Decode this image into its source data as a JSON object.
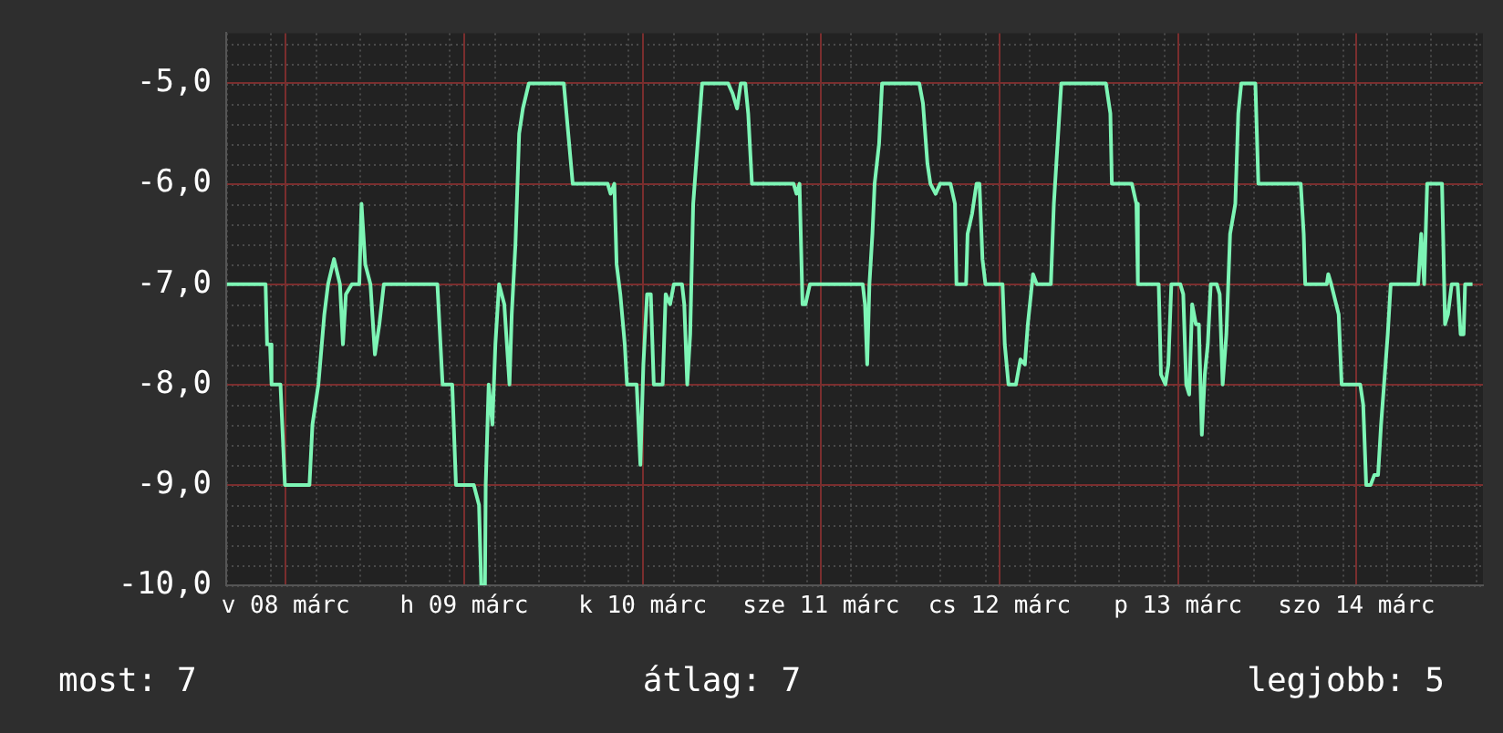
{
  "chart_data": {
    "type": "line",
    "annotations": [
      "most: 7",
      "átlag: 7",
      "legjobb: 5"
    ],
    "xlim": [
      "--03-07T16:00",
      "--03-14T17:00"
    ],
    "xticks": [
      {
        "value": "--03-08",
        "label": "v 08 márc"
      },
      {
        "value": "--03-09",
        "label": "h 09 márc"
      },
      {
        "value": "--03-10",
        "label": "k 10 márc"
      },
      {
        "value": "--03-11",
        "label": "sze 11 márc"
      },
      {
        "value": "--03-12",
        "label": "cs 12 márc"
      },
      {
        "value": "--03-13",
        "label": "p 13 márc"
      },
      {
        "value": "--03-14",
        "label": "szo 14 márc"
      }
    ],
    "ylim": [
      -10,
      -4.5
    ],
    "yticks": [
      {
        "value": -10,
        "label": "-10,0"
      },
      {
        "value": -9,
        "label": "-9,0"
      },
      {
        "value": -8,
        "label": "-8,0"
      },
      {
        "value": -7,
        "label": "-7,0"
      },
      {
        "value": -6,
        "label": "-6,0"
      },
      {
        "value": -5,
        "label": "-5,0"
      }
    ],
    "grid": true,
    "legend": false,
    "marker": "none",
    "line_style": "solid",
    "series": [
      {
        "color": "#7df5b5",
        "x": [
          "--03-07T16:06",
          "--03-07T21:18",
          "--03-07T21:30",
          "--03-07T21:54",
          "--03-07T22:06",
          "--03-07T23:18",
          "--03-07T23:54",
          "--03-08T03:12",
          "--03-08T03:36",
          "--03-08T04:24",
          "--03-08T05:12",
          "--03-08T05:42",
          "--03-08T06:30",
          "--03-08T07:18",
          "--03-08T07:42",
          "--03-08T08:06",
          "--03-08T08:54",
          "--03-08T09:54",
          "--03-08T10:12",
          "--03-08T10:42",
          "--03-08T11:24",
          "--03-08T12:00",
          "--03-08T12:36",
          "--03-08T13:12",
          "--03-08T20:24",
          "--03-08T21:06",
          "--03-08T22:24",
          "--03-08T22:54",
          "--03-09T01:18",
          "--03-09T02:00",
          "--03-09T02:18",
          "--03-09T02:48",
          "--03-09T02:54",
          "--03-09T03:18",
          "--03-09T03:48",
          "--03-09T04:12",
          "--03-09T04:42",
          "--03-09T05:24",
          "--03-09T06:06",
          "--03-09T06:24",
          "--03-09T06:54",
          "--03-09T07:24",
          "--03-09T07:54",
          "--03-09T08:42",
          "--03-09T13:24",
          "--03-09T14:00",
          "--03-09T14:36",
          "--03-09T19:18",
          "--03-09T19:42",
          "--03-09T20:12",
          "--03-09T20:30",
          "--03-09T21:00",
          "--03-09T21:36",
          "--03-09T21:54",
          "--03-09T23:12",
          "--03-09T23:42",
          "--03-10T00:06",
          "--03-10T00:36",
          "--03-10T01:06",
          "--03-10T01:30",
          "--03-10T02:42",
          "--03-10T03:06",
          "--03-10T03:42",
          "--03-10T04:12",
          "--03-10T05:18",
          "--03-10T05:36",
          "--03-10T06:00",
          "--03-10T06:24",
          "--03-10T06:48",
          "--03-10T07:24",
          "--03-10T08:00",
          "--03-10T11:30",
          "--03-10T12:06",
          "--03-10T12:42",
          "--03-10T13:12",
          "--03-10T13:48",
          "--03-10T14:12",
          "--03-10T14:42",
          "--03-10T20:18",
          "--03-10T20:42",
          "--03-10T21:06",
          "--03-10T21:30",
          "--03-10T21:54",
          "--03-10T22:30",
          "--03-11T05:36",
          "--03-11T05:54",
          "--03-11T06:12",
          "--03-11T06:30",
          "--03-11T06:54",
          "--03-11T07:12",
          "--03-11T07:48",
          "--03-11T08:12",
          "--03-11T13:12",
          "--03-11T13:42",
          "--03-11T14:18",
          "--03-11T14:42",
          "--03-11T15:24",
          "--03-11T16:00",
          "--03-11T17:24",
          "--03-11T18:00",
          "--03-11T18:12",
          "--03-11T19:30",
          "--03-11T19:42",
          "--03-11T20:18",
          "--03-11T20:54",
          "--03-11T21:18",
          "--03-11T21:42",
          "--03-11T22:06",
          "--03-12T00:24",
          "--03-12T00:42",
          "--03-12T01:12",
          "--03-12T02:12",
          "--03-12T02:48",
          "--03-12T03:24",
          "--03-12T03:48",
          "--03-12T04:30",
          "--03-12T05:00",
          "--03-12T06:54",
          "--03-12T07:18",
          "--03-12T07:48",
          "--03-12T08:18",
          "--03-12T14:18",
          "--03-12T14:54",
          "--03-12T15:06",
          "--03-12T17:48",
          "--03-12T18:24",
          "--03-12T18:36",
          "--03-12T21:24",
          "--03-12T21:42",
          "--03-12T22:18",
          "--03-12T22:42",
          "--03-12T23:06",
          "--03-13T00:18",
          "--03-13T00:42",
          "--03-13T01:06",
          "--03-13T01:30",
          "--03-13T01:54",
          "--03-13T02:24",
          "--03-13T02:48",
          "--03-13T03:12",
          "--03-13T03:36",
          "--03-13T04:00",
          "--03-13T04:24",
          "--03-13T05:12",
          "--03-13T05:36",
          "--03-13T06:00",
          "--03-13T06:30",
          "--03-13T07:00",
          "--03-13T07:42",
          "--03-13T08:06",
          "--03-13T08:30",
          "--03-13T10:24",
          "--03-13T10:48",
          "--03-13T16:30",
          "--03-13T16:54",
          "--03-13T17:06",
          "--03-13T20:00",
          "--03-13T20:12",
          "--03-13T20:36",
          "--03-13T21:36",
          "--03-13T22:00",
          "--03-14T00:30",
          "--03-14T00:54",
          "--03-14T01:18",
          "--03-14T01:54",
          "--03-14T02:24",
          "--03-14T02:54",
          "--03-14T03:18",
          "--03-14T03:42",
          "--03-14T04:12",
          "--03-14T04:36",
          "--03-14T08:18",
          "--03-14T08:42",
          "--03-14T09:06",
          "--03-14T09:30",
          "--03-14T11:30",
          "--03-14T11:54",
          "--03-14T12:18",
          "--03-14T12:48",
          "--03-14T13:36",
          "--03-14T14:00",
          "--03-14T14:24",
          "--03-14T14:36",
          "--03-14T15:36"
        ],
        "values": [
          -7,
          -7,
          -7.6,
          -7.6,
          -8,
          -8,
          -9,
          -9,
          -8.4,
          -8,
          -7.3,
          -7,
          -6.75,
          -7,
          -7.6,
          -7.1,
          -7,
          -7,
          -6.2,
          -6.8,
          -7,
          -7.7,
          -7.4,
          -7,
          -7,
          -8,
          -8,
          -9,
          -9,
          -9.2,
          -10,
          -10,
          -9,
          -8,
          -8.4,
          -7.6,
          -7,
          -7.2,
          -8,
          -7.3,
          -6.6,
          -5.5,
          -5.25,
          -5,
          -5,
          -5.5,
          -6,
          -6,
          -6.1,
          -6,
          -6.8,
          -7.1,
          -7.6,
          -8,
          -8,
          -8.8,
          -7.8,
          -7.1,
          -7.1,
          -8,
          -8,
          -7.1,
          -7.2,
          -7,
          -7,
          -7.2,
          -8,
          -7.5,
          -6.2,
          -5.6,
          -5,
          -5,
          -5.1,
          -5.25,
          -5,
          -5,
          -5.3,
          -6,
          -6,
          -6.1,
          -6,
          -7.2,
          -7.2,
          -7,
          -7,
          -7.2,
          -7.8,
          -7,
          -6.5,
          -6,
          -5.6,
          -5,
          -5,
          -5.2,
          -5.8,
          -6,
          -6.1,
          -6,
          -6,
          -6.2,
          -7,
          -7,
          -6.5,
          -6.3,
          -6,
          -6,
          -6.75,
          -7,
          -7,
          -7.6,
          -8,
          -8,
          -7.75,
          -7.8,
          -7.4,
          -6.9,
          -7,
          -7,
          -6.2,
          -5.6,
          -5,
          -5,
          -5.3,
          -6,
          -6,
          -6.2,
          -7,
          -7,
          -7.9,
          -8,
          -7.8,
          -7,
          -7,
          -7.1,
          -8,
          -8.1,
          -7.2,
          -7.4,
          -7.4,
          -8.5,
          -7.9,
          -7.6,
          -7,
          -7,
          -7.1,
          -8,
          -7.5,
          -6.5,
          -6.2,
          -5.3,
          -5,
          -5,
          -6,
          -6,
          -6.5,
          -7,
          -7,
          -6.9,
          -7,
          -7.3,
          -8,
          -8,
          -8.2,
          -9,
          -9,
          -8.9,
          -8.9,
          -8.4,
          -8,
          -7.5,
          -7,
          -7,
          -6.5,
          -7,
          -6,
          -6,
          -7.4,
          -7.3,
          -7,
          -7,
          -7.5,
          -7.5,
          -7,
          -7
        ]
      }
    ]
  }
}
